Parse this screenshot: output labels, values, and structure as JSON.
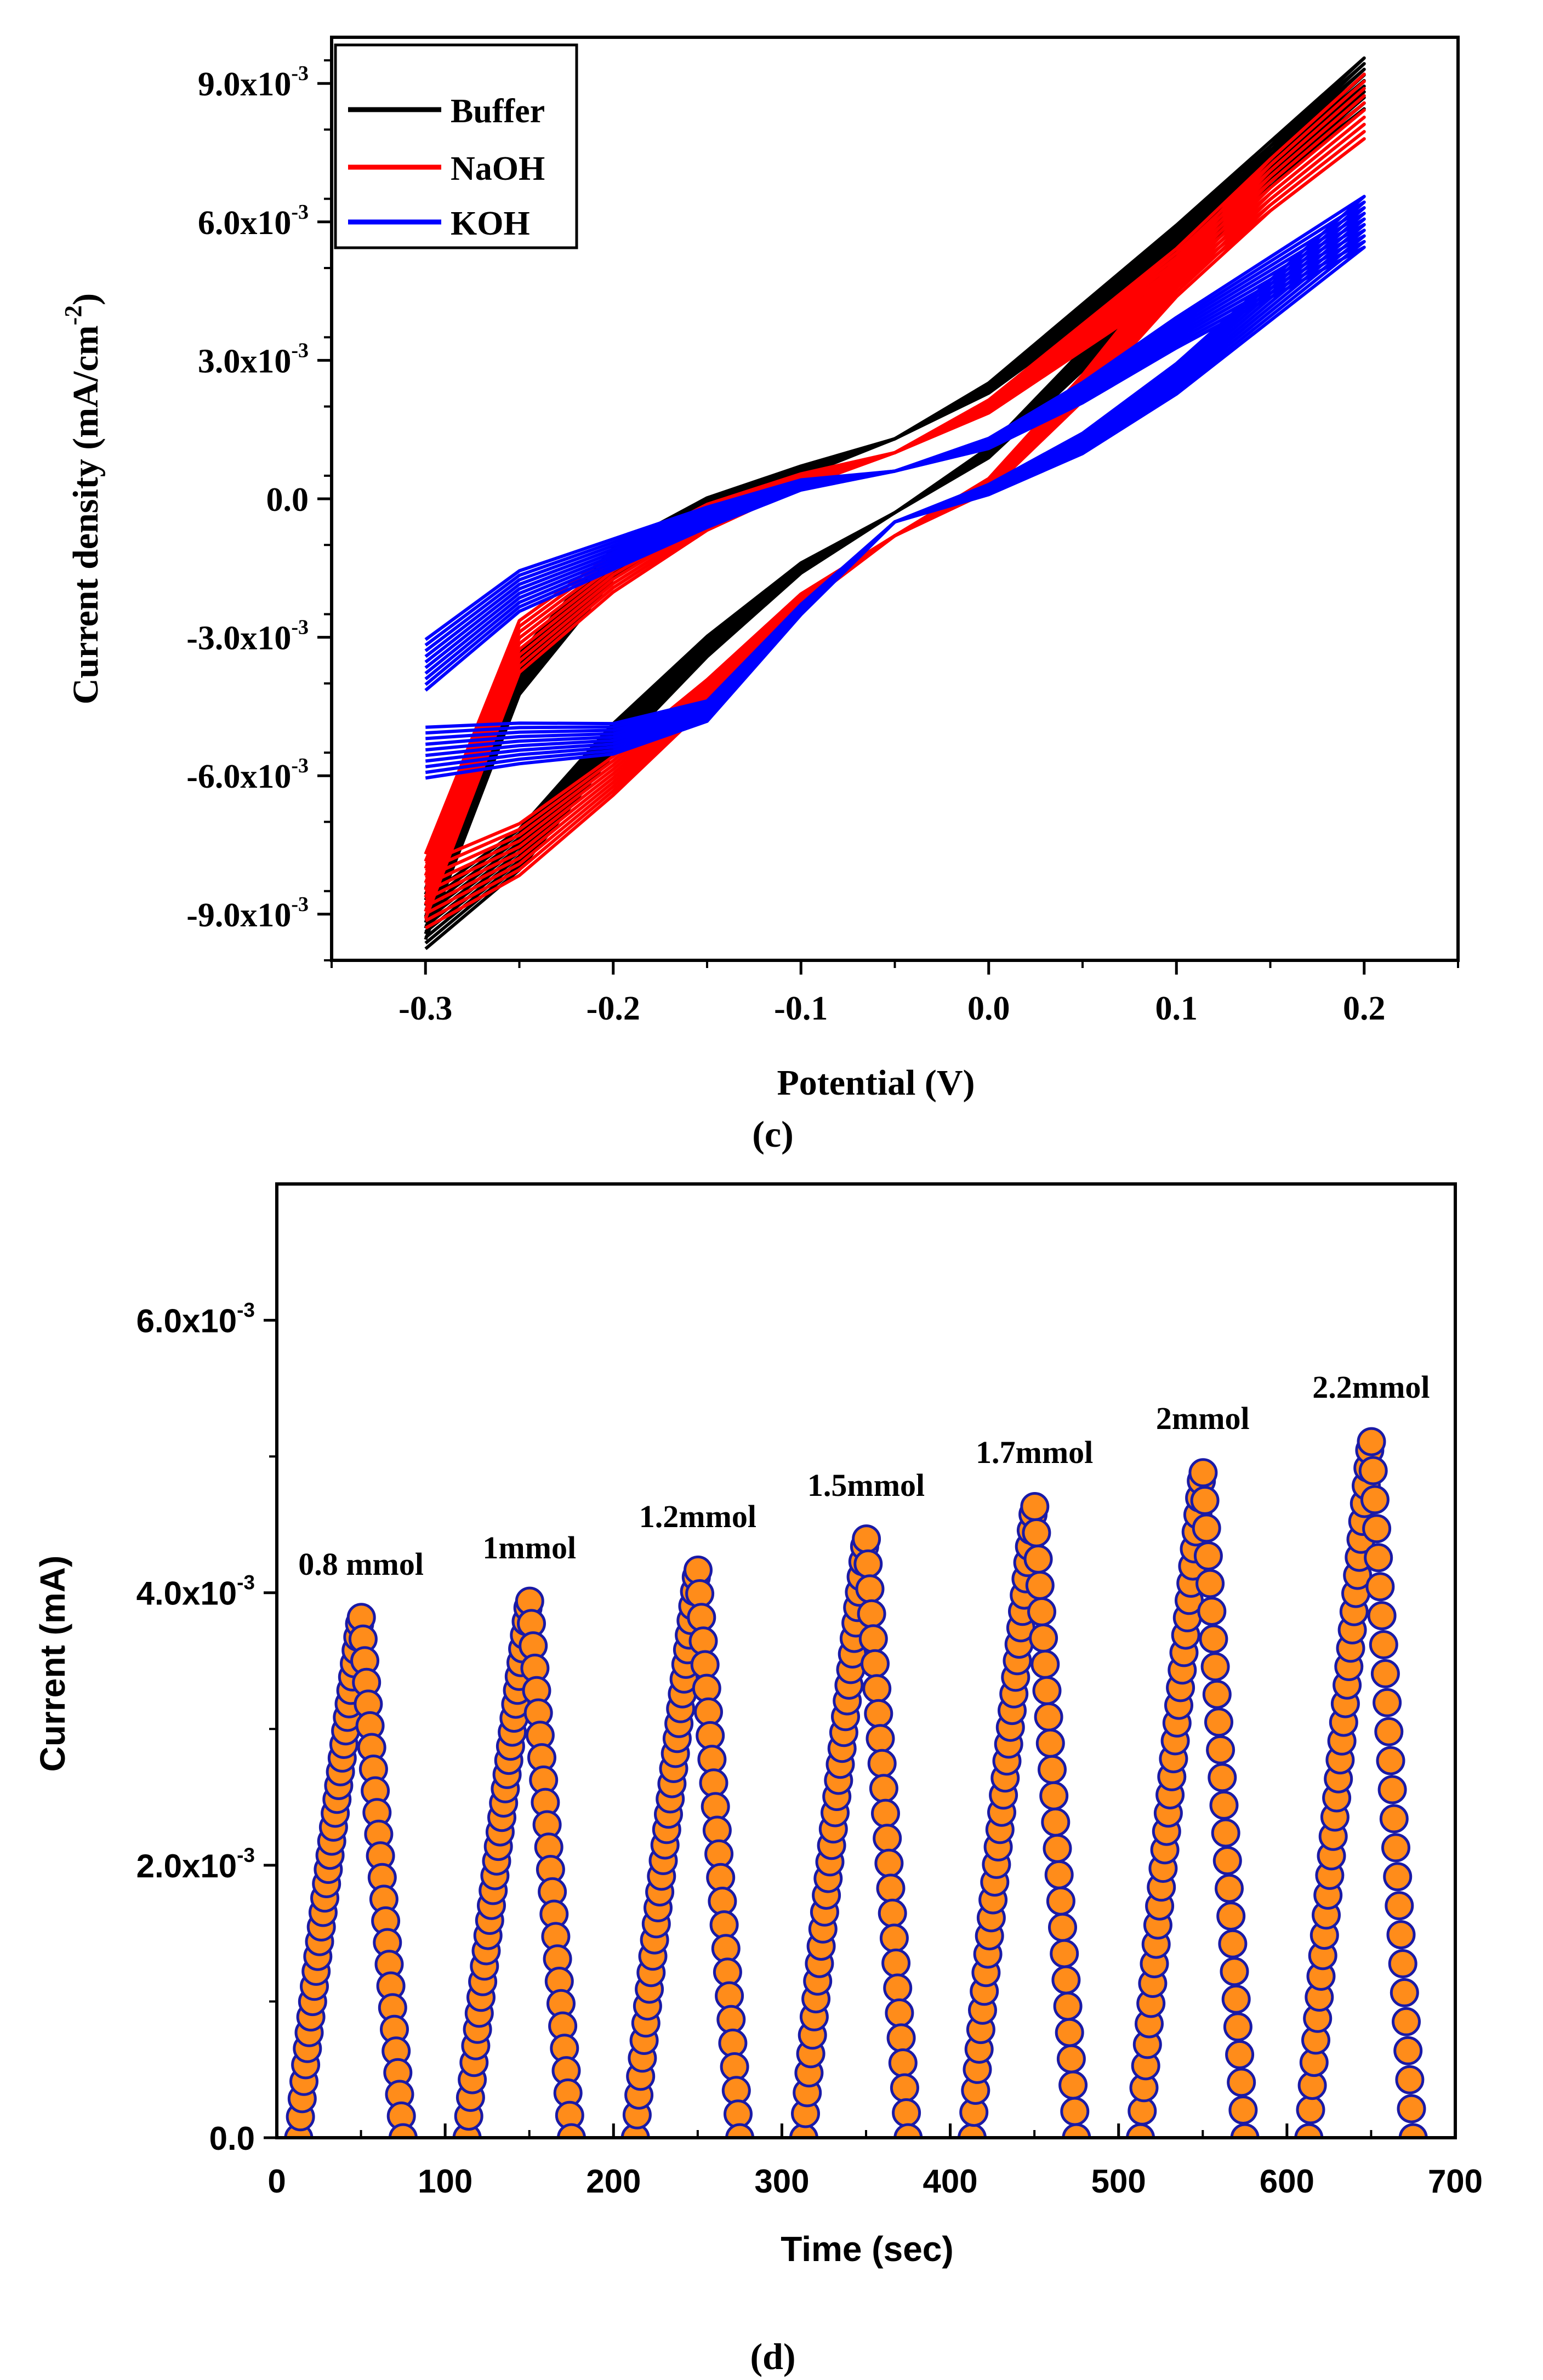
{
  "chart_data": [
    {
      "id": "c",
      "type": "line",
      "panel_label": "(c)",
      "title": "",
      "xlabel": "Potential (V)",
      "ylabel_main": "Current density (mA/cm",
      "ylabel_sup": "-2",
      "ylabel_close": ")",
      "xlim": [
        -0.35,
        0.25
      ],
      "ylim": [
        -10.0,
        10.0
      ],
      "y_unit_exponent": -3,
      "x_ticks": [
        -0.3,
        -0.2,
        -0.1,
        0.0,
        0.1,
        0.2
      ],
      "x_tick_labels": [
        "-0.3",
        "-0.2",
        "-0.1",
        "0.0",
        "0.1",
        "0.2"
      ],
      "y_ticks": [
        -9,
        -6,
        -3,
        0,
        3,
        6,
        9
      ],
      "y_tick_labels": [
        {
          "mant": "-9.0x10",
          "exp": "-3"
        },
        {
          "mant": "-6.0x10",
          "exp": "-3"
        },
        {
          "mant": "-3.0x10",
          "exp": "-3"
        },
        {
          "mant": "0.0",
          "exp": ""
        },
        {
          "mant": "3.0x10",
          "exp": "-3"
        },
        {
          "mant": "6.0x10",
          "exp": "-3"
        },
        {
          "mant": "9.0x10",
          "exp": "-3"
        }
      ],
      "legend_position": "top-left",
      "series": [
        {
          "name": "Buffer",
          "color": "#000000",
          "cycles": 10,
          "forward": [
            [
              -0.3,
              -9.2
            ],
            [
              -0.25,
              -7.6
            ],
            [
              -0.2,
              -5.2
            ],
            [
              -0.15,
              -3.2
            ],
            [
              -0.1,
              -1.5
            ],
            [
              -0.05,
              -0.3
            ],
            [
              0.0,
              1.0
            ],
            [
              0.05,
              3.0
            ],
            [
              0.1,
              5.2
            ],
            [
              0.15,
              7.2
            ],
            [
              0.2,
              9.0
            ]
          ],
          "reverse": [
            [
              0.2,
              9.0
            ],
            [
              0.15,
              7.3
            ],
            [
              0.1,
              5.6
            ],
            [
              0.05,
              4.0
            ],
            [
              0.0,
              2.4
            ],
            [
              -0.05,
              1.3
            ],
            [
              -0.1,
              0.6
            ],
            [
              -0.15,
              -0.2
            ],
            [
              -0.2,
              -1.4
            ],
            [
              -0.25,
              -3.8
            ],
            [
              -0.3,
              -9.0
            ]
          ],
          "spread": 0.55
        },
        {
          "name": "NaOH",
          "color": "#ff0000",
          "cycles": 10,
          "forward": [
            [
              -0.3,
              -8.6
            ],
            [
              -0.25,
              -7.6
            ],
            [
              -0.2,
              -6.0
            ],
            [
              -0.15,
              -4.2
            ],
            [
              -0.1,
              -2.2
            ],
            [
              -0.05,
              -0.8
            ],
            [
              0.0,
              0.3
            ],
            [
              0.05,
              2.4
            ],
            [
              0.1,
              4.8
            ],
            [
              0.15,
              6.8
            ],
            [
              0.2,
              8.5
            ]
          ],
          "reverse": [
            [
              0.2,
              8.5
            ],
            [
              0.15,
              6.8
            ],
            [
              0.1,
              5.0
            ],
            [
              0.05,
              3.5
            ],
            [
              0.0,
              2.0
            ],
            [
              -0.05,
              1.0
            ],
            [
              -0.1,
              0.4
            ],
            [
              -0.15,
              -0.4
            ],
            [
              -0.2,
              -1.6
            ],
            [
              -0.25,
              -3.2
            ],
            [
              -0.3,
              -8.4
            ]
          ],
          "spread": 0.7
        },
        {
          "name": "KOH",
          "color": "#0000ff",
          "cycles": 10,
          "forward": [
            [
              -0.3,
              -5.5
            ],
            [
              -0.25,
              -5.3
            ],
            [
              -0.2,
              -5.2
            ],
            [
              -0.15,
              -4.6
            ],
            [
              -0.1,
              -2.4
            ],
            [
              -0.05,
              -0.5
            ],
            [
              0.0,
              0.2
            ],
            [
              0.05,
              1.2
            ],
            [
              0.1,
              2.6
            ],
            [
              0.15,
              4.3
            ],
            [
              0.2,
              6.0
            ]
          ],
          "reverse": [
            [
              0.2,
              6.0
            ],
            [
              0.15,
              4.8
            ],
            [
              0.1,
              3.6
            ],
            [
              0.05,
              2.3
            ],
            [
              0.0,
              1.2
            ],
            [
              -0.05,
              0.6
            ],
            [
              -0.1,
              0.3
            ],
            [
              -0.15,
              -0.4
            ],
            [
              -0.2,
              -1.2
            ],
            [
              -0.25,
              -2.0
            ],
            [
              -0.3,
              -3.6
            ]
          ],
          "spread": 0.55
        }
      ]
    },
    {
      "id": "d",
      "type": "scatter",
      "panel_label": "(d)",
      "title": "",
      "xlabel": "Time (sec)",
      "ylabel": "Current (mA)",
      "xlim": [
        0,
        700
      ],
      "ylim": [
        0,
        7.0
      ],
      "y_unit_exponent": -3,
      "x_ticks": [
        0,
        100,
        200,
        300,
        400,
        500,
        600,
        700
      ],
      "x_tick_labels": [
        "0",
        "100",
        "200",
        "300",
        "400",
        "500",
        "600",
        "700"
      ],
      "y_ticks": [
        0,
        2,
        4,
        6
      ],
      "y_tick_labels": [
        {
          "mant": "0.0",
          "exp": ""
        },
        {
          "mant": "2.0x10",
          "exp": "-3"
        },
        {
          "mant": "4.0x10",
          "exp": "-3"
        },
        {
          "mant": "6.0x10",
          "exp": "-3"
        }
      ],
      "marker_fill": "#ff8c1a",
      "marker_edge": "#1a1aa6",
      "peaks": [
        {
          "label": "0.8 mmol",
          "start": 13,
          "peak_time": 50,
          "end": 75,
          "peak": 3.85
        },
        {
          "label": "1mmol",
          "start": 113,
          "peak_time": 150,
          "end": 175,
          "peak": 3.97
        },
        {
          "label": "1.2mmol",
          "start": 213,
          "peak_time": 250,
          "end": 275,
          "peak": 4.2
        },
        {
          "label": "1.5mmol",
          "start": 313,
          "peak_time": 350,
          "end": 375,
          "peak": 4.43
        },
        {
          "label": "1.7mmol",
          "start": 413,
          "peak_time": 450,
          "end": 475,
          "peak": 4.67
        },
        {
          "label": "2mmol",
          "start": 513,
          "peak_time": 550,
          "end": 575,
          "peak": 4.92
        },
        {
          "label": "2.2mmol",
          "start": 613,
          "peak_time": 650,
          "end": 675,
          "peak": 5.15
        }
      ]
    }
  ]
}
